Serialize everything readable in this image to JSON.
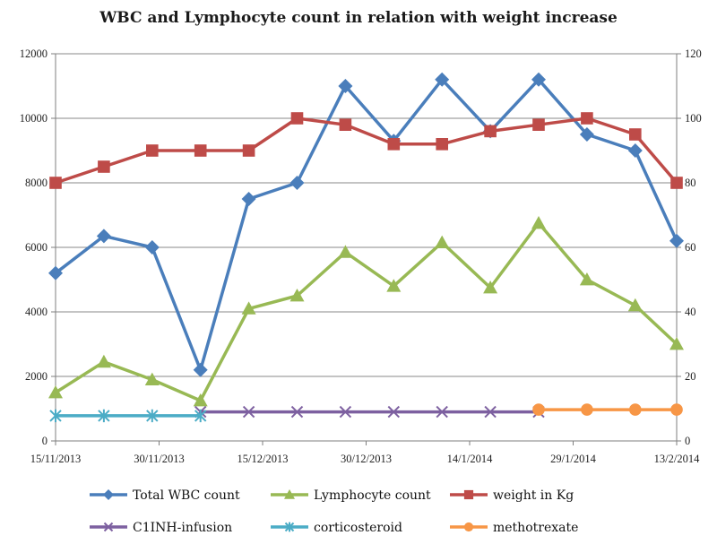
{
  "chart_data": {
    "type": "line",
    "title": "WBC and Lymphocyte count in relation with weight increase",
    "x_ticks": [
      "15/11/2013",
      "30/11/2013",
      "15/12/2013",
      "30/12/2013",
      "14/1/2014",
      "29/1/2014",
      "13/2/2014"
    ],
    "x_range": [
      "15/11/2013",
      "13/2/2014"
    ],
    "y_left": {
      "range": [
        0,
        12000
      ],
      "ticks": [
        "0",
        "2000",
        "4000",
        "6000",
        "8000",
        "10000",
        "12000"
      ]
    },
    "y_right": {
      "range": [
        0,
        120
      ],
      "ticks": [
        "0",
        "20",
        "40",
        "60",
        "80",
        "100",
        "120"
      ]
    },
    "grid": "horizontal",
    "legend_position": "bottom",
    "series": [
      {
        "name": "Total WBC count",
        "axis": "left",
        "color": "#4A7EBB",
        "marker": "diamond",
        "points": [
          [
            "15/11/2013",
            5200
          ],
          [
            "22/11/2013",
            6350
          ],
          [
            "29/11/2013",
            6000
          ],
          [
            "6/12/2013",
            2200
          ],
          [
            "13/12/2013",
            7500
          ],
          [
            "20/12/2013",
            8000
          ],
          [
            "27/12/2013",
            11000
          ],
          [
            "3/1/2014",
            9300
          ],
          [
            "10/1/2014",
            11200
          ],
          [
            "17/1/2014",
            9600
          ],
          [
            "24/1/2014",
            11200
          ],
          [
            "31/1/2014",
            9500
          ],
          [
            "7/2/2014",
            9000
          ],
          [
            "13/2/2014",
            6200
          ]
        ]
      },
      {
        "name": "Lymphocyte count",
        "axis": "left",
        "color": "#98B954",
        "marker": "triangle",
        "points": [
          [
            "15/11/2013",
            1500
          ],
          [
            "22/11/2013",
            2450
          ],
          [
            "29/11/2013",
            1900
          ],
          [
            "6/12/2013",
            1250
          ],
          [
            "13/12/2013",
            4100
          ],
          [
            "20/12/2013",
            4500
          ],
          [
            "27/12/2013",
            5850
          ],
          [
            "3/1/2014",
            4800
          ],
          [
            "10/1/2014",
            6150
          ],
          [
            "17/1/2014",
            4750
          ],
          [
            "24/1/2014",
            6750
          ],
          [
            "31/1/2014",
            5000
          ],
          [
            "7/2/2014",
            4200
          ],
          [
            "13/2/2014",
            3000
          ]
        ]
      },
      {
        "name": "weight in Kg",
        "axis": "right",
        "color": "#BE4B48",
        "marker": "square",
        "points": [
          [
            "15/11/2013",
            80
          ],
          [
            "22/11/2013",
            85
          ],
          [
            "29/11/2013",
            90
          ],
          [
            "6/12/2013",
            90
          ],
          [
            "13/12/2013",
            90
          ],
          [
            "20/12/2013",
            100
          ],
          [
            "27/12/2013",
            98
          ],
          [
            "3/1/2014",
            92
          ],
          [
            "10/1/2014",
            92
          ],
          [
            "17/1/2014",
            96
          ],
          [
            "24/1/2014",
            98
          ],
          [
            "31/1/2014",
            100
          ],
          [
            "7/2/2014",
            95
          ],
          [
            "13/2/2014",
            80
          ]
        ]
      },
      {
        "name": "C1INH-infusion",
        "axis": "left",
        "color": "#7D60A0",
        "marker": "x",
        "points": [
          [
            "6/12/2013",
            900
          ],
          [
            "13/12/2013",
            900
          ],
          [
            "20/12/2013",
            900
          ],
          [
            "27/12/2013",
            900
          ],
          [
            "3/1/2014",
            900
          ],
          [
            "10/1/2014",
            900
          ],
          [
            "17/1/2014",
            900
          ],
          [
            "24/1/2014",
            900
          ]
        ]
      },
      {
        "name": "corticosteroid",
        "axis": "left",
        "color": "#4BACC6",
        "marker": "star",
        "points": [
          [
            "15/11/2013",
            780
          ],
          [
            "22/11/2013",
            780
          ],
          [
            "29/11/2013",
            780
          ],
          [
            "6/12/2013",
            780
          ]
        ]
      },
      {
        "name": "methotrexate",
        "axis": "left",
        "color": "#F79646",
        "marker": "circle",
        "points": [
          [
            "24/1/2014",
            970
          ],
          [
            "31/1/2014",
            970
          ],
          [
            "7/2/2014",
            970
          ],
          [
            "13/2/2014",
            970
          ]
        ]
      }
    ]
  }
}
